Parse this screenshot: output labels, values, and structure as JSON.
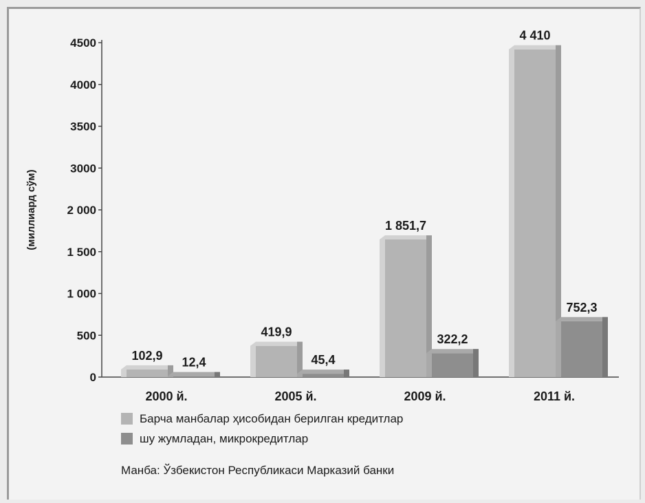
{
  "chart_data": {
    "type": "bar",
    "title": "",
    "xlabel": "",
    "ylabel": "(миллиард сўм)",
    "ylim": [
      0,
      4500
    ],
    "y_ticks": [
      "0",
      "500",
      "1 000",
      "1 500",
      "2 000",
      "3000",
      "3500",
      "4000",
      "4500"
    ],
    "categories": [
      "2000 й.",
      "2005 й.",
      "2009 й.",
      "2011 й."
    ],
    "series": [
      {
        "name": "Барча манбалар ҳисобидан берилган кредитлар",
        "values": [
          102.9,
          419.9,
          1851.7,
          4410
        ],
        "labels": [
          "102,9",
          "419,9",
          "1 851,7",
          "4 410"
        ],
        "color": "#b4b4b4"
      },
      {
        "name": "шу жумладан, микрокредитлар",
        "values": [
          12.4,
          45.4,
          322.2,
          752.3
        ],
        "labels": [
          "12,4",
          "45,4",
          "322,2",
          "752,3"
        ],
        "color": "#8e8e8e"
      }
    ],
    "legend_position": "bottom-left",
    "grid": false
  },
  "source_note": "Манба: Ўзбекистон Республикаси Марказий банки"
}
